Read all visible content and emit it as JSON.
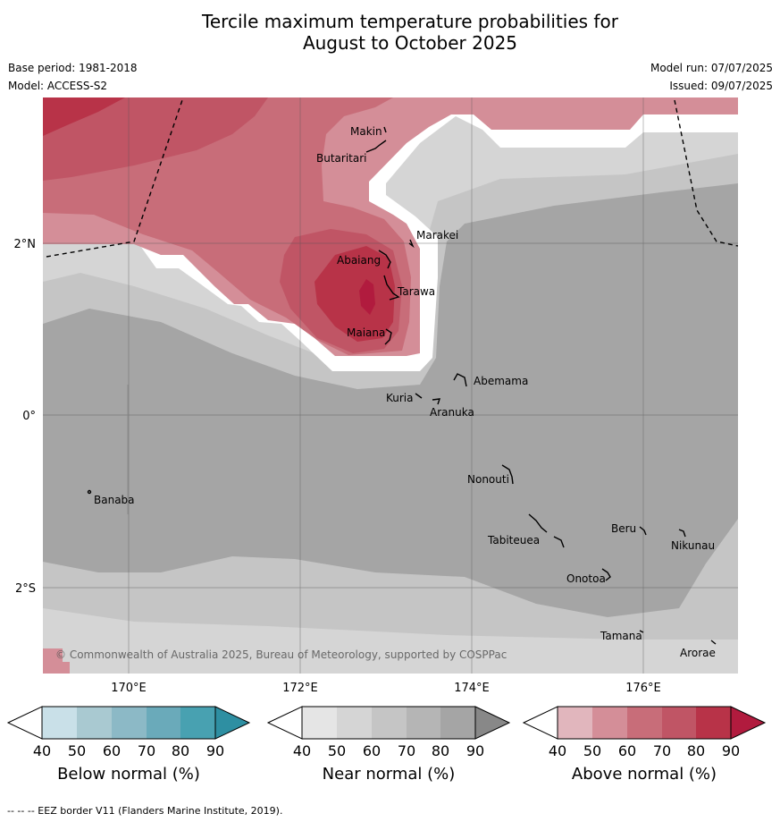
{
  "title": {
    "line1": "Tercile maximum temperature probabilities for",
    "line2": "August to October 2025"
  },
  "meta": {
    "base_period": "Base period: 1981-2018",
    "model": "Model: ACCESS-S2",
    "model_run": "Model run: 07/07/2025",
    "issued": "Issued: 09/07/2025"
  },
  "axes": {
    "lat_labels": [
      "2°N",
      "0°",
      "2°S"
    ],
    "lon_labels": [
      "170°E",
      "172°E",
      "174°E",
      "176°E"
    ]
  },
  "places": [
    {
      "name": "Makin"
    },
    {
      "name": "Butaritari"
    },
    {
      "name": "Marakei"
    },
    {
      "name": "Abaiang"
    },
    {
      "name": "Tarawa"
    },
    {
      "name": "Maiana"
    },
    {
      "name": "Abemama"
    },
    {
      "name": "Kuria"
    },
    {
      "name": "Aranuka"
    },
    {
      "name": "Nonouti"
    },
    {
      "name": "Banaba"
    },
    {
      "name": "Beru"
    },
    {
      "name": "Nikunau"
    },
    {
      "name": "Tabiteuea"
    },
    {
      "name": "Onotoa"
    },
    {
      "name": "Tamana"
    },
    {
      "name": "Arorae"
    }
  ],
  "copyright": "© Commonwealth of Australia 2025, Bureau of Meteorology, supported by COSPPac",
  "colorbars": [
    {
      "title": "Below normal (%)",
      "ticks": [
        "40",
        "50",
        "60",
        "70",
        "80",
        "90"
      ],
      "colors": [
        "#ffffff",
        "#c9e0e8",
        "#a9c9d1",
        "#8cb9c6",
        "#6aaaba",
        "#48a1b1",
        "#2e8fa2"
      ]
    },
    {
      "title": "Near normal (%)",
      "ticks": [
        "40",
        "50",
        "60",
        "70",
        "80",
        "90"
      ],
      "colors": [
        "#ffffff",
        "#e5e5e5",
        "#d5d5d5",
        "#c5c5c5",
        "#b5b5b5",
        "#a5a5a5",
        "#888888"
      ]
    },
    {
      "title": "Above normal (%)",
      "ticks": [
        "40",
        "50",
        "60",
        "70",
        "80",
        "90"
      ],
      "colors": [
        "#ffffff",
        "#e1b6bd",
        "#d48e98",
        "#c86d79",
        "#c05565",
        "#b83348",
        "#b11b3e"
      ]
    }
  ],
  "eez_note": "--  --  -- EEZ border V11 (Flanders Marine Institute, 2019)."
}
